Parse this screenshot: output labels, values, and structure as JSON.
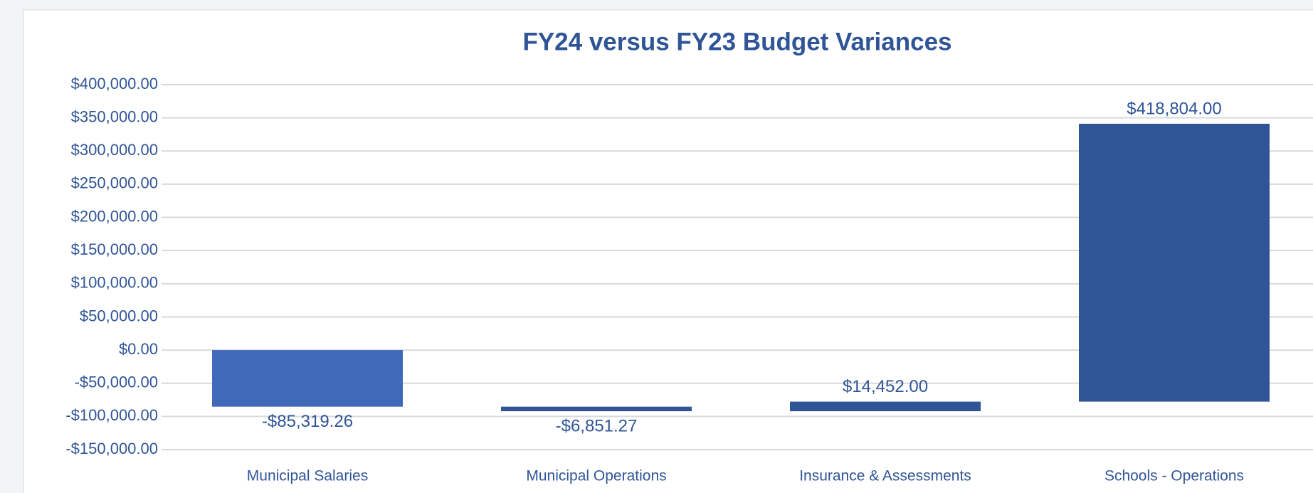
{
  "chart_data": {
    "type": "waterfall",
    "title": "FY24 versus FY23 Budget Variances",
    "categories": [
      "Municipal Salaries",
      "Municipal Operations",
      "Insurance  & Assessments",
      "Schools - Operations"
    ],
    "values": [
      -85319.26,
      -6851.27,
      14452,
      418804
    ],
    "value_labels": [
      "-$85,319.26",
      "-$6,851.27",
      "$14,452.00",
      "$418,804.00"
    ],
    "colors": [
      "#4069b9",
      "#2f5597",
      "#2f5597",
      "#2f5597"
    ],
    "ylim": [
      -150000,
      400000
    ],
    "yticks": [
      {
        "value": -150000,
        "label": "-$150,000.00"
      },
      {
        "value": -100000,
        "label": "-$100,000.00"
      },
      {
        "value": -50000,
        "label": "-$50,000.00"
      },
      {
        "value": 0,
        "label": "$0.00"
      },
      {
        "value": 50000,
        "label": "$50,000.00"
      },
      {
        "value": 100000,
        "label": "$100,000.00"
      },
      {
        "value": 150000,
        "label": "$150,000.00"
      },
      {
        "value": 200000,
        "label": "$200,000.00"
      },
      {
        "value": 250000,
        "label": "$250,000.00"
      },
      {
        "value": 300000,
        "label": "$300,000.00"
      },
      {
        "value": 350000,
        "label": "$350,000.00"
      },
      {
        "value": 400000,
        "label": "$400,000.00"
      }
    ],
    "grid": true
  }
}
